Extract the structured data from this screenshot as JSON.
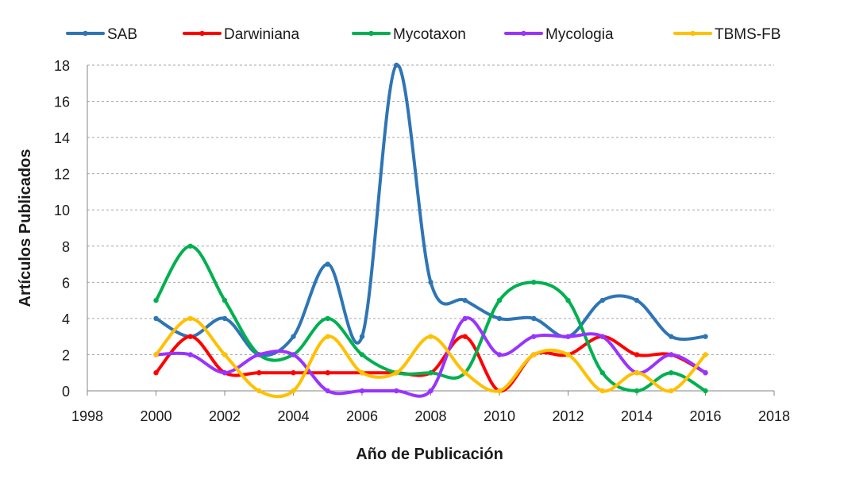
{
  "chart_data": {
    "type": "line",
    "xlabel": "Año de Publicación",
    "ylabel": "Artículos Publicados",
    "xlim": [
      1998,
      2018
    ],
    "ylim": [
      0,
      18
    ],
    "x_ticks": [
      "1998",
      "2000",
      "2002",
      "2004",
      "2006",
      "2008",
      "2010",
      "2012",
      "2014",
      "2016",
      "2018"
    ],
    "y_ticks": [
      "0",
      "2",
      "4",
      "6",
      "8",
      "10",
      "12",
      "14",
      "16",
      "18"
    ],
    "grid": "horizontal dashed",
    "legend_position": "top",
    "smoothed": true,
    "x": [
      2000,
      2001,
      2002,
      2003,
      2004,
      2005,
      2006,
      2007,
      2008,
      2009,
      2010,
      2011,
      2012,
      2013,
      2014,
      2015,
      2016
    ],
    "series": [
      {
        "name": "SAB",
        "color": "#2e75b6",
        "values": [
          4,
          3,
          4,
          2,
          3,
          7,
          3,
          18,
          6,
          5,
          4,
          4,
          3,
          5,
          5,
          3,
          3
        ]
      },
      {
        "name": "Darwiniana",
        "color": "#ff0000",
        "values": [
          1,
          3,
          1,
          1,
          1,
          1,
          1,
          1,
          1,
          3,
          0,
          2,
          2,
          3,
          2,
          2,
          1
        ]
      },
      {
        "name": "Mycotaxon",
        "color": "#00b050",
        "values": [
          5,
          8,
          5,
          2,
          2,
          4,
          2,
          1,
          1,
          1,
          5,
          6,
          5,
          1,
          0,
          1,
          0
        ]
      },
      {
        "name": "Mycologia",
        "color": "#9933ff",
        "values": [
          2,
          2,
          1,
          2,
          2,
          0,
          0,
          0,
          0,
          4,
          2,
          3,
          3,
          3,
          1,
          2,
          1
        ]
      },
      {
        "name": "TBMS-FB",
        "color": "#ffc000",
        "values": [
          2,
          4,
          2,
          0,
          0,
          3,
          1,
          1,
          3,
          1,
          0,
          2,
          2,
          0,
          1,
          0,
          2
        ]
      }
    ]
  }
}
